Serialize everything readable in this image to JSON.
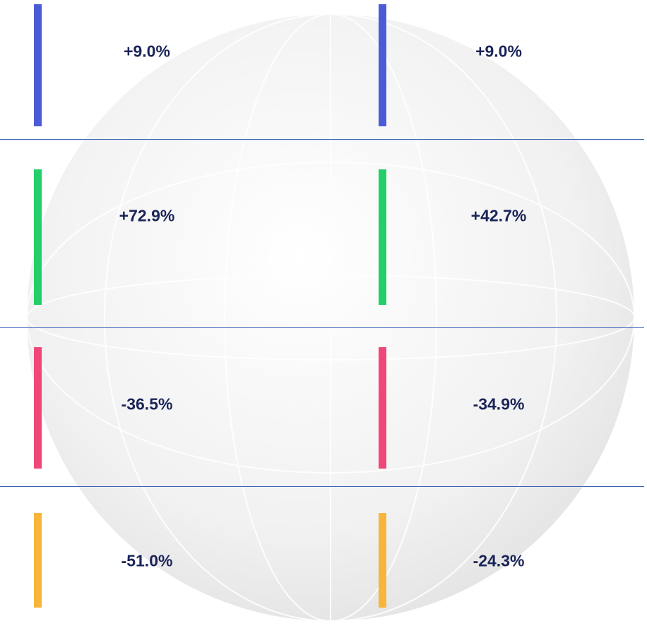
{
  "rows": [
    {
      "color": "#4b5bd8",
      "cells": [
        "+9.0%",
        "+9.0%"
      ]
    },
    {
      "color": "#22cf68",
      "cells": [
        "+72.9%",
        "+42.7%"
      ]
    },
    {
      "color": "#ef4777",
      "cells": [
        "-36.5%",
        "-34.9%"
      ]
    },
    {
      "color": "#f7b53b",
      "cells": [
        "-51.0%",
        "-24.3%"
      ]
    }
  ]
}
